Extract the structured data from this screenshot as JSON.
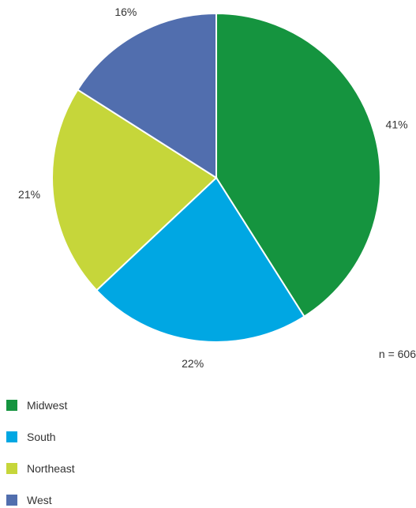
{
  "chart_data": {
    "type": "pie",
    "title": "",
    "categories": [
      "Midwest",
      "South",
      "Northeast",
      "West"
    ],
    "values": [
      41,
      22,
      21,
      16
    ],
    "value_labels": [
      "41%",
      "22%",
      "21%",
      "16%"
    ],
    "colors": [
      "#15943f",
      "#00a7e3",
      "#c6d63a",
      "#516eae"
    ],
    "note": "n = 606",
    "legend_position": "bottom-left"
  }
}
